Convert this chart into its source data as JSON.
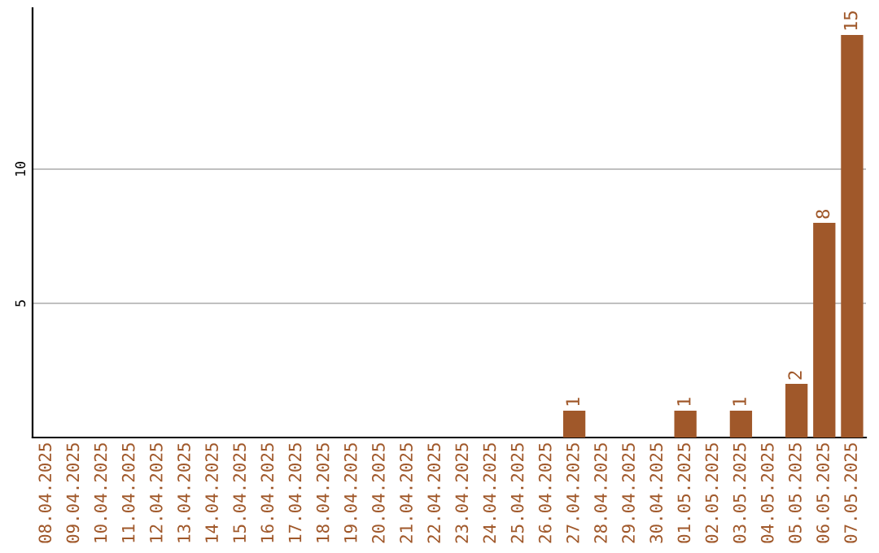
{
  "chart_data": {
    "type": "bar",
    "categories": [
      "08.04.2025",
      "09.04.2025",
      "10.04.2025",
      "11.04.2025",
      "12.04.2025",
      "13.04.2025",
      "14.04.2025",
      "15.04.2025",
      "16.04.2025",
      "17.04.2025",
      "18.04.2025",
      "19.04.2025",
      "20.04.2025",
      "21.04.2025",
      "22.04.2025",
      "23.04.2025",
      "24.04.2025",
      "25.04.2025",
      "26.04.2025",
      "27.04.2025",
      "28.04.2025",
      "29.04.2025",
      "30.04.2025",
      "01.05.2025",
      "02.05.2025",
      "03.05.2025",
      "04.05.2025",
      "05.05.2025",
      "06.05.2025",
      "07.05.2025"
    ],
    "values": [
      0,
      0,
      0,
      0,
      0,
      0,
      0,
      0,
      0,
      0,
      0,
      0,
      0,
      0,
      0,
      0,
      0,
      0,
      0,
      1,
      0,
      0,
      0,
      1,
      0,
      1,
      0,
      2,
      8,
      15
    ],
    "value_labels": [
      null,
      null,
      null,
      null,
      null,
      null,
      null,
      null,
      null,
      null,
      null,
      null,
      null,
      null,
      null,
      null,
      null,
      null,
      null,
      "1",
      null,
      null,
      null,
      "1",
      null,
      "1",
      null,
      "2",
      "8",
      "15"
    ],
    "color": "#a0582a",
    "ylim": [
      0,
      16
    ],
    "yticks": [
      5,
      10
    ],
    "grid": "y"
  }
}
